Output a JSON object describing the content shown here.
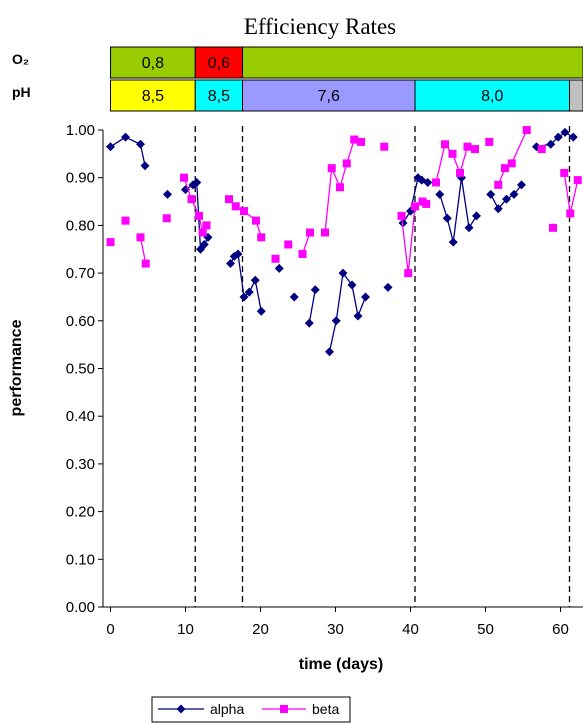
{
  "chart_data": {
    "type": "line",
    "title": "Efficiency Rates",
    "xlabel": "time (days)",
    "ylabel": "performance",
    "xlim": [
      -1,
      63
    ],
    "ylim": [
      0,
      1
    ],
    "x_ticks": [
      0,
      10,
      20,
      30,
      40,
      50,
      60
    ],
    "y_ticks": [
      "0.00",
      "0.10",
      "0.20",
      "0.30",
      "0.40",
      "0.50",
      "0.60",
      "0.70",
      "0.80",
      "0.90",
      "1.00"
    ],
    "vertical_markers": [
      11.3,
      17.6,
      40.6,
      61.2
    ],
    "bands": [
      {
        "label": "O₂",
        "segments": [
          {
            "text": "0,8",
            "start": 0,
            "end": 11.3,
            "color": "#99cc00"
          },
          {
            "text": "0,6",
            "start": 11.3,
            "end": 17.6,
            "color": "#ff0000"
          },
          {
            "text": "",
            "start": 17.6,
            "end": 63,
            "color": "#99cc00"
          }
        ]
      },
      {
        "label": "pH",
        "segments": [
          {
            "text": "8,5",
            "start": 0,
            "end": 11.3,
            "color": "#ffff00"
          },
          {
            "text": "8,5",
            "start": 11.3,
            "end": 17.6,
            "color": "#00ffff"
          },
          {
            "text": "7,6",
            "start": 17.6,
            "end": 40.6,
            "color": "#9999ff"
          },
          {
            "text": "8,0",
            "start": 40.6,
            "end": 61.2,
            "color": "#00ffff"
          },
          {
            "text": "",
            "start": 61.2,
            "end": 63,
            "color": "#c0c0c0"
          }
        ]
      }
    ],
    "series": [
      {
        "name": "alpha",
        "color": "#000080",
        "marker": "diamond",
        "points": [
          [
            [
              0,
              0.965
            ],
            [
              2,
              0.985
            ],
            [
              4,
              0.97
            ],
            [
              4.6,
              0.925
            ]
          ],
          [
            [
              7.6,
              0.865
            ]
          ],
          [
            [
              10,
              0.875
            ],
            [
              11,
              0.885
            ],
            [
              11.5,
              0.89
            ],
            [
              12,
              0.75
            ],
            [
              12.5,
              0.76
            ],
            [
              13,
              0.775
            ]
          ],
          [
            [
              16,
              0.72
            ],
            [
              16.5,
              0.735
            ],
            [
              17,
              0.74
            ],
            [
              17.8,
              0.65
            ],
            [
              18.5,
              0.66
            ],
            [
              19.3,
              0.685
            ],
            [
              20.1,
              0.62
            ]
          ],
          [
            [
              22.5,
              0.71
            ]
          ],
          [
            [
              24.5,
              0.65
            ]
          ],
          [
            [
              26.5,
              0.595
            ],
            [
              27.3,
              0.665
            ]
          ],
          [
            [
              29.2,
              0.535
            ],
            [
              30.1,
              0.6
            ],
            [
              31,
              0.7
            ],
            [
              32.2,
              0.675
            ],
            [
              33,
              0.61
            ],
            [
              34,
              0.65
            ]
          ],
          [
            [
              37,
              0.67
            ]
          ],
          [
            [
              39,
              0.805
            ],
            [
              40,
              0.83
            ],
            [
              41,
              0.9
            ],
            [
              41.5,
              0.895
            ],
            [
              42.3,
              0.89
            ]
          ],
          [
            [
              43.9,
              0.865
            ],
            [
              44.9,
              0.815
            ],
            [
              45.7,
              0.765
            ],
            [
              46.8,
              0.9
            ],
            [
              47.8,
              0.795
            ],
            [
              48.8,
              0.82
            ]
          ],
          [
            [
              50.7,
              0.865
            ],
            [
              51.7,
              0.835
            ],
            [
              52.8,
              0.855
            ],
            [
              53.8,
              0.865
            ],
            [
              54.8,
              0.885
            ]
          ],
          [
            [
              56.8,
              0.965
            ],
            [
              58.7,
              0.97
            ],
            [
              59.7,
              0.985
            ],
            [
              60.6,
              0.995
            ],
            [
              61.7,
              0.985
            ]
          ]
        ]
      },
      {
        "name": "beta",
        "color": "#ff00ff",
        "marker": "square",
        "points": [
          [
            [
              0,
              0.765
            ]
          ],
          [
            [
              2,
              0.81
            ]
          ],
          [
            [
              4,
              0.775
            ],
            [
              4.7,
              0.72
            ]
          ],
          [
            [
              7.5,
              0.815
            ]
          ],
          [
            [
              9.8,
              0.9
            ],
            [
              10.8,
              0.855
            ],
            [
              11.8,
              0.82
            ],
            [
              12.3,
              0.785
            ],
            [
              12.8,
              0.8
            ]
          ],
          [
            [
              15.8,
              0.855
            ],
            [
              16.7,
              0.84
            ],
            [
              17.8,
              0.83
            ],
            [
              19.4,
              0.81
            ],
            [
              20.1,
              0.775
            ]
          ],
          [
            [
              22,
              0.73
            ]
          ],
          [
            [
              23.7,
              0.76
            ]
          ],
          [
            [
              25.6,
              0.74
            ],
            [
              26.6,
              0.785
            ]
          ],
          [
            [
              28.6,
              0.785
            ],
            [
              29.5,
              0.92
            ],
            [
              30.6,
              0.88
            ],
            [
              31.5,
              0.93
            ],
            [
              32.5,
              0.98
            ],
            [
              33.4,
              0.975
            ]
          ],
          [
            [
              36.5,
              0.965
            ]
          ],
          [
            [
              38.8,
              0.82
            ],
            [
              39.7,
              0.7
            ],
            [
              40.6,
              0.84
            ],
            [
              41.6,
              0.85
            ],
            [
              42.1,
              0.845
            ]
          ],
          [
            [
              43.4,
              0.89
            ],
            [
              44.6,
              0.97
            ],
            [
              45.6,
              0.95
            ],
            [
              46.6,
              0.91
            ],
            [
              47.6,
              0.965
            ],
            [
              48.6,
              0.96
            ]
          ],
          [
            [
              50.5,
              0.975
            ]
          ],
          [
            [
              51.7,
              0.885
            ],
            [
              52.6,
              0.92
            ],
            [
              53.5,
              0.93
            ],
            [
              55.5,
              1.0
            ]
          ],
          [
            [
              57.5,
              0.96
            ]
          ],
          [
            [
              59,
              0.795
            ]
          ],
          [
            [
              60.5,
              0.91
            ],
            [
              61.3,
              0.825
            ],
            [
              62.3,
              0.895
            ]
          ]
        ]
      }
    ],
    "legend": {
      "placement": "bottom-center",
      "entries": [
        "alpha",
        "beta"
      ]
    }
  }
}
